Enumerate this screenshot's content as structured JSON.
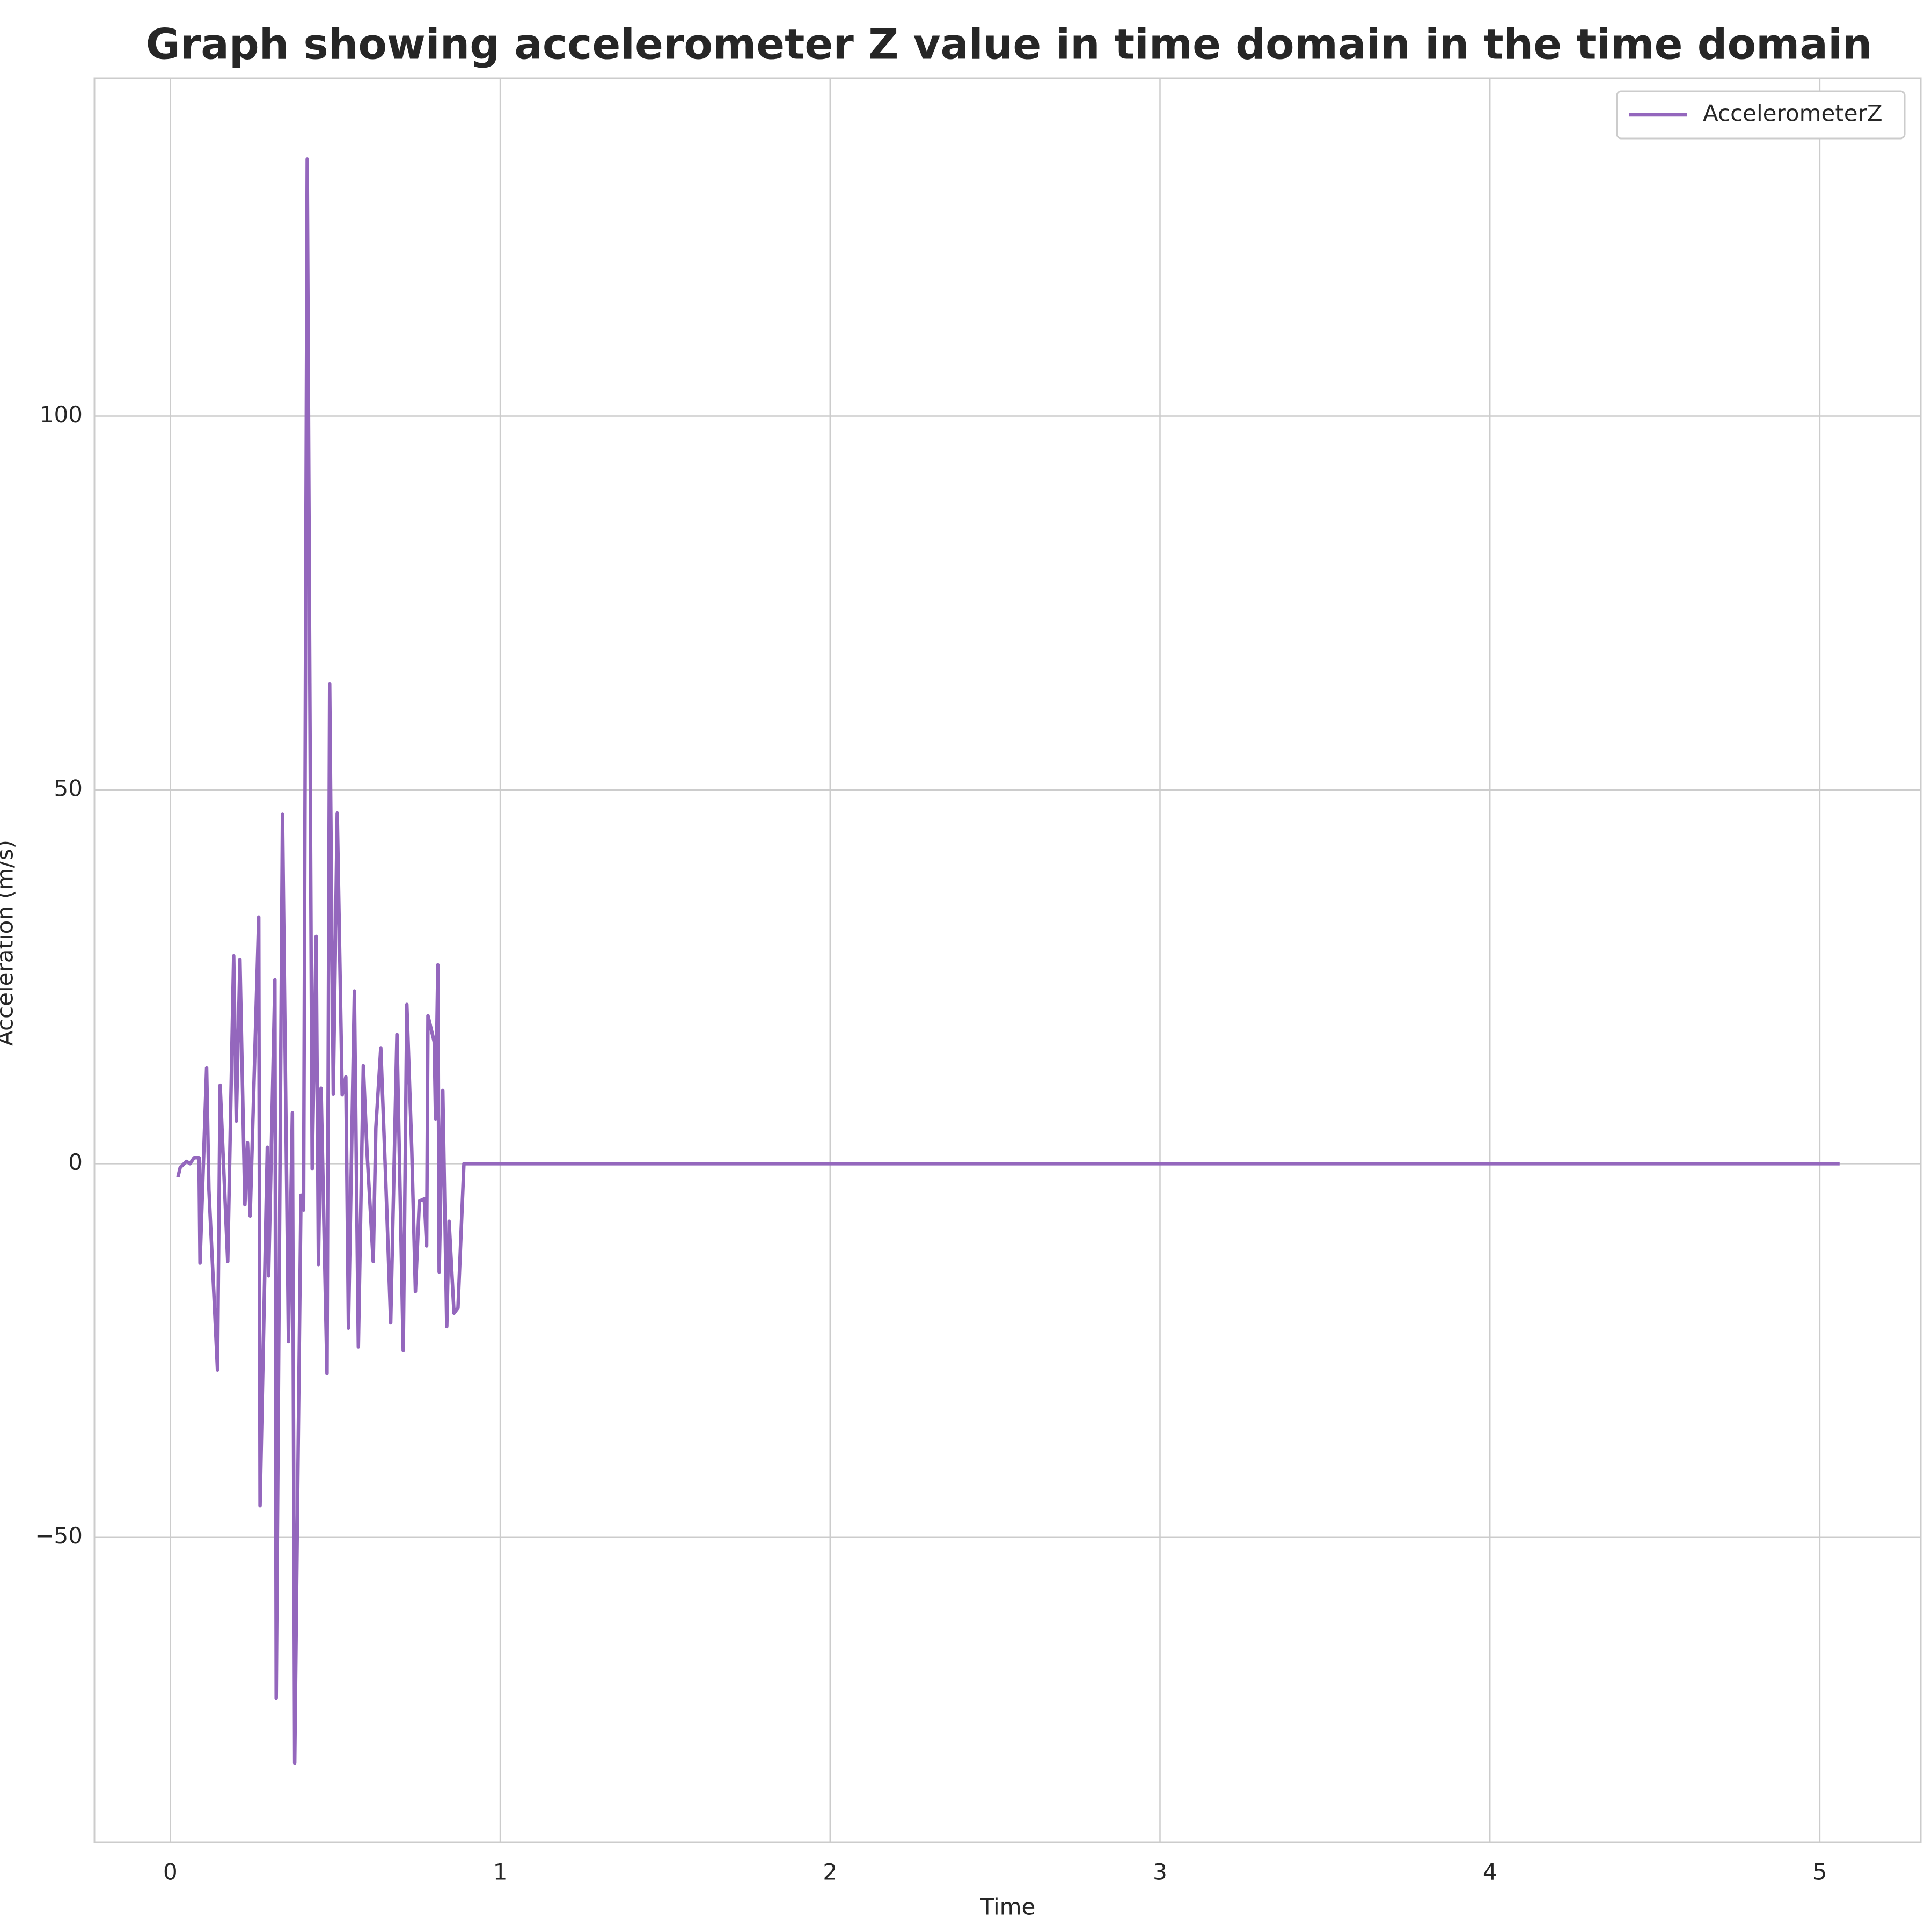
{
  "chart_data": {
    "type": "line",
    "title": "Graph showing accelerometer Z value in time domain in the time domain",
    "x_label": "Time",
    "y_label": "Acceleration (m/s)",
    "x": [
      0.023,
      0.03,
      0.049,
      0.06,
      0.072,
      0.087,
      0.09,
      0.11,
      0.117,
      0.143,
      0.151,
      0.174,
      0.192,
      0.2,
      0.211,
      0.226,
      0.234,
      0.242,
      0.268,
      0.272,
      0.294,
      0.298,
      0.317,
      0.321,
      0.34,
      0.358,
      0.37,
      0.377,
      0.396,
      0.404,
      0.415,
      0.43,
      0.442,
      0.449,
      0.457,
      0.475,
      0.483,
      0.494,
      0.506,
      0.521,
      0.532,
      0.54,
      0.558,
      0.57,
      0.585,
      0.596,
      0.615,
      0.623,
      0.638,
      0.653,
      0.668,
      0.687,
      0.706,
      0.717,
      0.732,
      0.743,
      0.755,
      0.77,
      0.777,
      0.781,
      0.8,
      0.804,
      0.811,
      0.815,
      0.826,
      0.838,
      0.845,
      0.86,
      0.872,
      0.89,
      5.06
    ],
    "series": [
      {
        "name": "AccelerometerZ",
        "color": "#9467bd",
        "values": [
          -1.8,
          -0.5,
          0.3,
          0,
          0.8,
          0.8,
          -13.3,
          12.8,
          -3.5,
          -27.6,
          10.5,
          -13.1,
          27.8,
          5.7,
          27.3,
          -5.5,
          2.8,
          -7,
          33,
          -45.8,
          2.2,
          -15,
          24.6,
          -71.5,
          46.8,
          -23.8,
          6.8,
          -80.2,
          -4.2,
          -6.2,
          134.4,
          -0.7,
          30.4,
          -13.5,
          10.1,
          -28.1,
          64.2,
          9.3,
          46.9,
          9.2,
          11.6,
          -22,
          23.1,
          -24.5,
          13.1,
          1.8,
          -13.1,
          4.8,
          15.5,
          -2.2,
          -21.3,
          17.3,
          -25,
          21.3,
          1.7,
          -17.1,
          -5,
          -4.7,
          -11,
          19.8,
          16.3,
          6,
          26.6,
          -14.5,
          9.8,
          -21.8,
          -7.7,
          -20,
          -19.3,
          0,
          0
        ]
      }
    ],
    "xlim": [
      -0.23,
      5.306
    ],
    "ylim": [
      -90.8,
      145.2
    ],
    "xticks": [
      0,
      1,
      2,
      3,
      4,
      5
    ],
    "yticks": [
      {
        "value": -50,
        "label": "−50"
      },
      0,
      50,
      100
    ],
    "grid": true,
    "legend": "upper right"
  }
}
